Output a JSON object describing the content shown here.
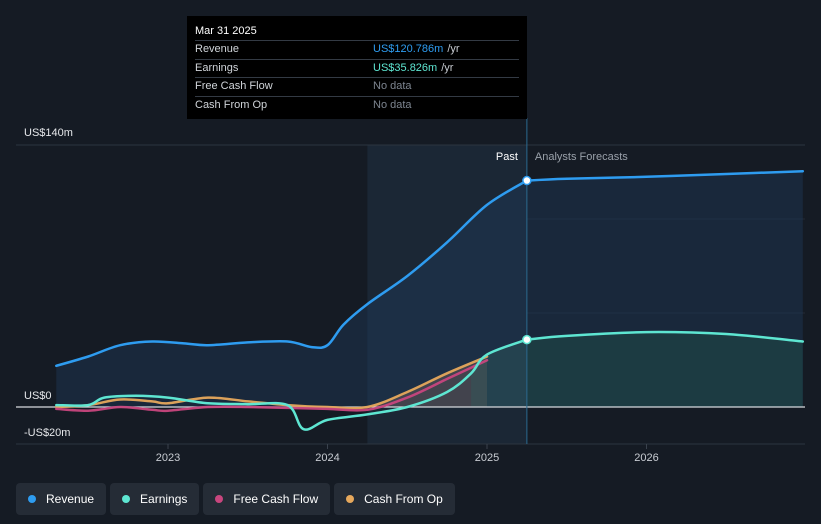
{
  "tooltip": {
    "date": "Mar 31 2025",
    "rows": [
      {
        "name": "Revenue",
        "value": "US$120.786m",
        "unit": "/yr",
        "color": "#2e9cf0"
      },
      {
        "name": "Earnings",
        "value": "US$35.826m",
        "unit": "/yr",
        "color": "#5ee6d2"
      },
      {
        "name": "Free Cash Flow",
        "value": "No data",
        "unit": "",
        "color": "#7d8590"
      },
      {
        "name": "Cash From Op",
        "value": "No data",
        "unit": "",
        "color": "#7d8590"
      }
    ]
  },
  "legend": [
    {
      "label": "Revenue",
      "color": "#2e9cf0"
    },
    {
      "label": "Earnings",
      "color": "#5ee6d2"
    },
    {
      "label": "Free Cash Flow",
      "color": "#c8467e"
    },
    {
      "label": "Cash From Op",
      "color": "#e6a85c"
    }
  ],
  "chart_data": {
    "type": "line",
    "y_axis_labels": [
      "US$140m",
      "US$0",
      "-US$20m"
    ],
    "ylim": [
      -20,
      140
    ],
    "xlim": [
      2022.3,
      2026.98
    ],
    "x_ticks": [
      2023,
      2024,
      2025,
      2026
    ],
    "x_tick_labels": [
      "2023",
      "2024",
      "2025",
      "2026"
    ],
    "past_label": "Past",
    "forecast_label": "Analysts Forecasts",
    "highlight_start": 2024.25,
    "past_end": 2025.25,
    "series": [
      {
        "name": "Revenue",
        "color": "#2e9cf0",
        "x": [
          2022.3,
          2022.5,
          2022.7,
          2022.9,
          2023.1,
          2023.25,
          2023.5,
          2023.75,
          2023.9,
          2024.0,
          2024.1,
          2024.25,
          2024.5,
          2024.75,
          2025.0,
          2025.25
        ],
        "y": [
          22,
          27,
          33,
          35,
          34,
          33,
          34.5,
          35,
          32,
          33,
          44,
          55,
          70,
          88,
          108,
          121
        ],
        "forecast_x": [
          2025.25,
          2025.5,
          2026.0,
          2026.5,
          2026.98
        ],
        "forecast_y": [
          121,
          122,
          123,
          124.5,
          126
        ]
      },
      {
        "name": "Earnings",
        "color": "#5ee6d2",
        "x": [
          2022.3,
          2022.5,
          2022.6,
          2022.8,
          2023.0,
          2023.25,
          2023.5,
          2023.75,
          2023.85,
          2024.0,
          2024.25,
          2024.5,
          2024.75,
          2024.9,
          2025.0,
          2025.25
        ],
        "y": [
          1,
          1,
          5,
          6,
          5,
          2,
          1.5,
          1,
          -12,
          -7,
          -4,
          0,
          8,
          18,
          28,
          36
        ],
        "forecast_x": [
          2025.25,
          2025.5,
          2026.0,
          2026.5,
          2026.98
        ],
        "forecast_y": [
          36,
          38,
          40,
          39,
          35
        ]
      },
      {
        "name": "Free Cash Flow",
        "color": "#c8467e",
        "x": [
          2022.3,
          2022.5,
          2022.7,
          2022.9,
          2023.0,
          2023.25,
          2023.5,
          2023.75,
          2024.0,
          2024.25,
          2024.5,
          2024.75,
          2025.0
        ],
        "y": [
          -1,
          -2,
          0,
          -1.5,
          -2,
          0,
          0,
          -0.5,
          -1,
          -1.5,
          5,
          15,
          25
        ]
      },
      {
        "name": "Cash From Op",
        "color": "#e6a85c",
        "x": [
          2022.3,
          2022.5,
          2022.7,
          2022.9,
          2023.0,
          2023.25,
          2023.5,
          2023.75,
          2024.0,
          2024.25,
          2024.5,
          2024.75,
          2025.0
        ],
        "y": [
          0,
          1,
          4,
          3,
          2,
          5,
          3,
          1,
          0,
          0,
          8,
          18,
          27
        ]
      }
    ]
  }
}
